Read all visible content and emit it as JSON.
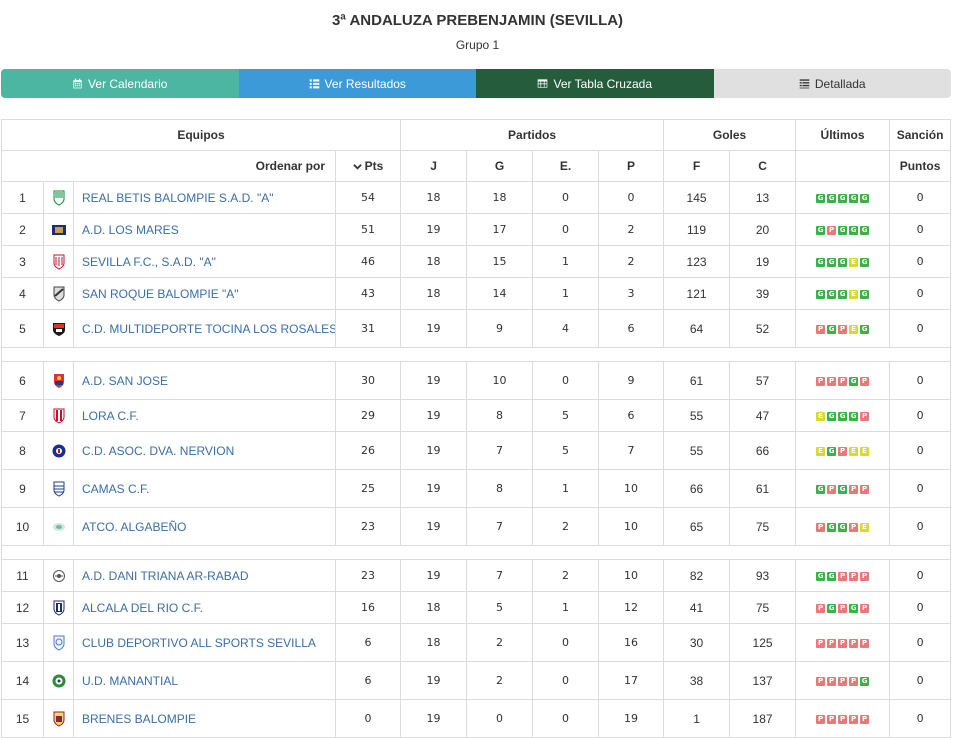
{
  "header": {
    "title": "3ª ANDALUZA PREBENJAMIN (SEVILLA)",
    "subtitle": "Grupo 1"
  },
  "nav": [
    {
      "label": "Ver Calendario",
      "icon": "calendar-icon",
      "color": "#4db6a3"
    },
    {
      "label": "Ver Resultados",
      "icon": "list-icon",
      "color": "#3c9ad8"
    },
    {
      "label": "Ver Tabla Cruzada",
      "icon": "table-icon",
      "color": "#255c3c"
    },
    {
      "label": "Detallada",
      "icon": "detail-list-icon",
      "color": "#e0e0e0"
    }
  ],
  "table": {
    "groups": {
      "equipos": "Equipos",
      "partidos": "Partidos",
      "goles": "Goles",
      "ultimos": "Últimos",
      "sancion": "Sanción"
    },
    "sub": {
      "ordenar": "Ordenar por",
      "pts": "Pts",
      "j": "J",
      "g": "G",
      "e": "E.",
      "p": "P",
      "f": "F",
      "c": "C",
      "puntos": "Puntos"
    },
    "result_colors": {
      "G": "#3cb04a",
      "P": "#e8797a",
      "E": "#d9d934"
    },
    "rows": [
      {
        "pos": "1",
        "team": "REAL BETIS BALOMPIE S.A.D. \"A\"",
        "pts": "54",
        "j": "18",
        "g": "18",
        "e": "0",
        "p": "0",
        "f": "145",
        "c": "13",
        "last": [
          "G",
          "G",
          "G",
          "G",
          "G"
        ],
        "sancion": "0",
        "crest": "betis-crest-icon"
      },
      {
        "pos": "2",
        "team": "A.D. LOS MARES",
        "pts": "51",
        "j": "19",
        "g": "17",
        "e": "0",
        "p": "2",
        "f": "119",
        "c": "20",
        "last": [
          "G",
          "P",
          "G",
          "G",
          "G"
        ],
        "sancion": "0",
        "crest": "mares-crest-icon"
      },
      {
        "pos": "3",
        "team": "SEVILLA F.C., S.A.D. \"A\"",
        "pts": "46",
        "j": "18",
        "g": "15",
        "e": "1",
        "p": "2",
        "f": "123",
        "c": "19",
        "last": [
          "G",
          "G",
          "G",
          "E",
          "G"
        ],
        "sancion": "0",
        "crest": "sevilla-crest-icon"
      },
      {
        "pos": "4",
        "team": "SAN ROQUE BALOMPIE \"A\"",
        "pts": "43",
        "j": "18",
        "g": "14",
        "e": "1",
        "p": "3",
        "f": "121",
        "c": "39",
        "last": [
          "G",
          "G",
          "G",
          "E",
          "G"
        ],
        "sancion": "0",
        "crest": "sanroque-crest-icon"
      },
      {
        "pos": "5",
        "team": "C.D. MULTIDEPORTE TOCINA LOS ROSALES",
        "pts": "31",
        "j": "19",
        "g": "9",
        "e": "4",
        "p": "6",
        "f": "64",
        "c": "52",
        "last": [
          "P",
          "G",
          "P",
          "E",
          "G"
        ],
        "sancion": "0",
        "crest": "tocina-crest-icon"
      },
      {
        "pos": "6",
        "team": "A.D. SAN JOSE",
        "pts": "30",
        "j": "19",
        "g": "10",
        "e": "0",
        "p": "9",
        "f": "61",
        "c": "57",
        "last": [
          "P",
          "P",
          "P",
          "G",
          "P"
        ],
        "sancion": "0",
        "crest": "sanjose-crest-icon"
      },
      {
        "pos": "7",
        "team": "LORA C.F.",
        "pts": "29",
        "j": "19",
        "g": "8",
        "e": "5",
        "p": "6",
        "f": "55",
        "c": "47",
        "last": [
          "E",
          "G",
          "G",
          "G",
          "P"
        ],
        "sancion": "0",
        "crest": "lora-crest-icon"
      },
      {
        "pos": "8",
        "team": "C.D. ASOC. DVA. NERVION",
        "pts": "26",
        "j": "19",
        "g": "7",
        "e": "5",
        "p": "7",
        "f": "55",
        "c": "66",
        "last": [
          "E",
          "G",
          "P",
          "E",
          "E"
        ],
        "sancion": "0",
        "crest": "nervion-crest-icon"
      },
      {
        "pos": "9",
        "team": "CAMAS C.F.",
        "pts": "25",
        "j": "19",
        "g": "8",
        "e": "1",
        "p": "10",
        "f": "66",
        "c": "61",
        "last": [
          "G",
          "P",
          "G",
          "P",
          "P"
        ],
        "sancion": "0",
        "crest": "camas-crest-icon"
      },
      {
        "pos": "10",
        "team": "ATCO. ALGABEÑO",
        "pts": "23",
        "j": "19",
        "g": "7",
        "e": "2",
        "p": "10",
        "f": "65",
        "c": "75",
        "last": [
          "P",
          "G",
          "G",
          "P",
          "E"
        ],
        "sancion": "0",
        "crest": "algabeno-crest-icon"
      },
      {
        "pos": "11",
        "team": "A.D. DANI TRIANA AR-RABAD",
        "pts": "23",
        "j": "19",
        "g": "7",
        "e": "2",
        "p": "10",
        "f": "82",
        "c": "93",
        "last": [
          "G",
          "G",
          "P",
          "P",
          "P"
        ],
        "sancion": "0",
        "crest": "triana-crest-icon"
      },
      {
        "pos": "12",
        "team": "ALCALA DEL RIO C.F.",
        "pts": "16",
        "j": "18",
        "g": "5",
        "e": "1",
        "p": "12",
        "f": "41",
        "c": "75",
        "last": [
          "P",
          "G",
          "P",
          "G",
          "P"
        ],
        "sancion": "0",
        "crest": "alcala-crest-icon"
      },
      {
        "pos": "13",
        "team": "CLUB DEPORTIVO ALL SPORTS SEVILLA",
        "pts": "6",
        "j": "18",
        "g": "2",
        "e": "0",
        "p": "16",
        "f": "30",
        "c": "125",
        "last": [
          "P",
          "P",
          "P",
          "P",
          "P"
        ],
        "sancion": "0",
        "crest": "allsports-crest-icon"
      },
      {
        "pos": "14",
        "team": "U.D. MANANTIAL",
        "pts": "6",
        "j": "19",
        "g": "2",
        "e": "0",
        "p": "17",
        "f": "38",
        "c": "137",
        "last": [
          "P",
          "P",
          "P",
          "P",
          "G"
        ],
        "sancion": "0",
        "crest": "manantial-crest-icon"
      },
      {
        "pos": "15",
        "team": "BRENES BALOMPIE",
        "pts": "0",
        "j": "19",
        "g": "0",
        "e": "0",
        "p": "19",
        "f": "1",
        "c": "187",
        "last": [
          "P",
          "P",
          "P",
          "P",
          "P"
        ],
        "sancion": "0",
        "crest": "brenes-crest-icon"
      }
    ]
  }
}
